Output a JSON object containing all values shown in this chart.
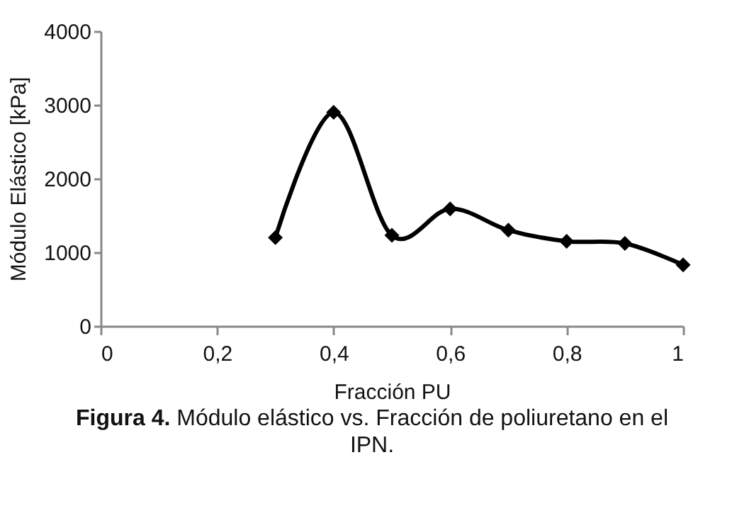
{
  "chart_data": {
    "type": "line",
    "xlabel": "Fracción PU",
    "ylabel": "Módulo Elástico [kPa]",
    "x": [
      0.3,
      0.4,
      0.5,
      0.6,
      0.7,
      0.8,
      0.9,
      1
    ],
    "series": [
      {
        "color": "#000000",
        "values": [
          1200,
          2900,
          1230,
          1590,
          1300,
          1150,
          1120,
          830
        ]
      }
    ],
    "xlim": [
      0,
      1
    ],
    "xticks": [
      0,
      {
        "value": 0.2,
        "label": "0,2"
      },
      {
        "value": 0.4,
        "label": "0,4"
      },
      {
        "value": 0.6,
        "label": "0,6"
      },
      {
        "value": 0.8,
        "label": "0,8"
      },
      1
    ],
    "ylim": [
      0,
      4000
    ],
    "yticks": [
      0,
      1000,
      2000,
      3000,
      4000
    ],
    "grid": false,
    "legend": false,
    "marker": "diamond",
    "line_style": "solid",
    "annotations": [
      "Figura 4.",
      "Módulo elástico vs. Fracción de poliuretano en el IPN."
    ]
  }
}
